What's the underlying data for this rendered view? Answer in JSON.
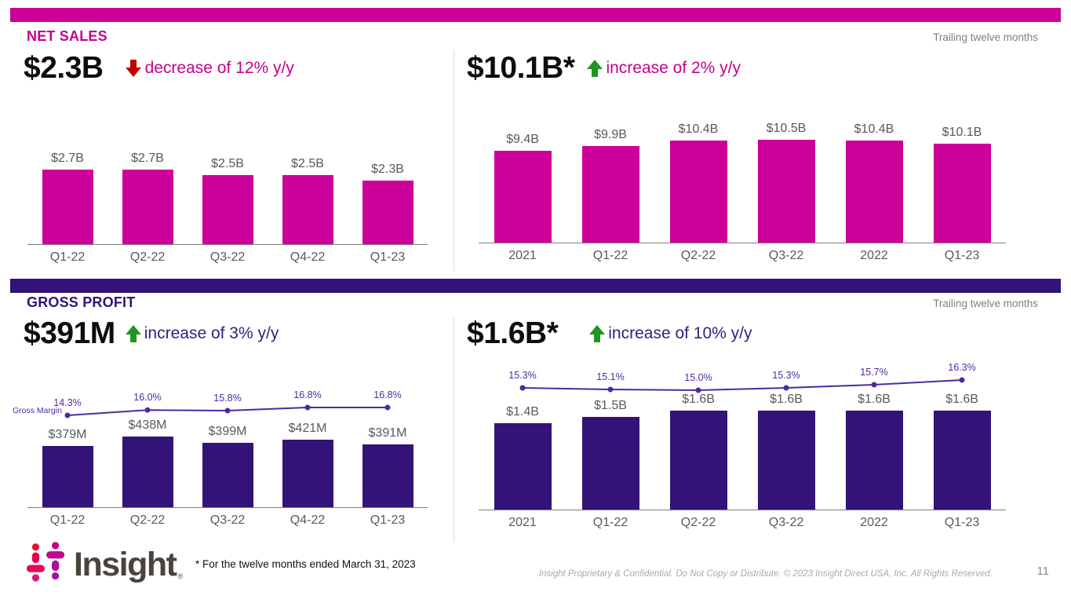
{
  "colors": {
    "magenta_accent": "#CC0099",
    "dark_purple_accent": "#331377",
    "margin_line_purple": "#4E2AA0",
    "decrease_arrow_red": "#C00000",
    "increase_arrow_green": "#219421",
    "axis_gray": "#7F7F7F",
    "label_gray": "#595959"
  },
  "net_sales": {
    "title": "NET SALES",
    "trailing": "Trailing twelve months",
    "left_headline": "$2.3B",
    "left_change": "decrease of 12% y/y",
    "right_headline": "$10.1B*",
    "right_change": "increase of 2% y/y"
  },
  "gross_profit": {
    "title": "GROSS PROFIT",
    "trailing": "Trailing twelve months",
    "left_headline": "$391M",
    "left_change": "increase of 3% y/y",
    "right_headline": "$1.6B*",
    "right_change": "increase of 10% y/y"
  },
  "footer": {
    "brand": "Insight",
    "reg_mark": "®",
    "footnote": "* For the twelve months ended March 31, 2023",
    "disclaimer": "Insight Proprietary & Confidential. Do Not Copy or Distribute. © 2023 Insight Direct USA, Inc. All Rights Reserved.",
    "page_number": "11"
  },
  "chart_data": [
    {
      "id": "net-sales-quarterly",
      "type": "bar",
      "categories": [
        "Q1-22",
        "Q2-22",
        "Q3-22",
        "Q4-22",
        "Q1-23"
      ],
      "values": [
        2.7,
        2.7,
        2.5,
        2.5,
        2.3
      ],
      "value_labels": [
        "$2.7B",
        "$2.7B",
        "$2.5B",
        "$2.5B",
        "$2.3B"
      ],
      "unit": "$B",
      "bar_color": "#CC0099"
    },
    {
      "id": "net-sales-ttm",
      "type": "bar",
      "categories": [
        "2021",
        "Q1-22",
        "Q2-22",
        "Q3-22",
        "2022",
        "Q1-23"
      ],
      "values": [
        9.4,
        9.9,
        10.4,
        10.5,
        10.4,
        10.1
      ],
      "value_labels": [
        "$9.4B",
        "$9.9B",
        "$10.4B",
        "$10.5B",
        "$10.4B",
        "$10.1B"
      ],
      "unit": "$B",
      "bar_color": "#CC0099"
    },
    {
      "id": "gross-profit-quarterly",
      "type": "bar+line",
      "categories": [
        "Q1-22",
        "Q2-22",
        "Q3-22",
        "Q4-22",
        "Q1-23"
      ],
      "values": [
        379,
        438,
        399,
        421,
        391
      ],
      "value_labels": [
        "$379M",
        "$438M",
        "$399M",
        "$421M",
        "$391M"
      ],
      "unit": "$M",
      "bar_color": "#331377",
      "line": {
        "name": "Gross Margin",
        "values": [
          14.3,
          16.0,
          15.8,
          16.8,
          16.8
        ],
        "value_labels": [
          "14.3%",
          "16.0%",
          "15.8%",
          "16.8%",
          "16.8%"
        ],
        "color": "#4E2AA0"
      }
    },
    {
      "id": "gross-profit-ttm",
      "type": "bar+line",
      "categories": [
        "2021",
        "Q1-22",
        "Q2-22",
        "Q3-22",
        "2022",
        "Q1-23"
      ],
      "values": [
        1.4,
        1.5,
        1.6,
        1.6,
        1.6,
        1.6
      ],
      "value_labels": [
        "$1.4B",
        "$1.5B",
        "$1.6B",
        "$1.6B",
        "$1.6B",
        "$1.6B"
      ],
      "unit": "$B",
      "bar_color": "#331377",
      "line": {
        "values": [
          15.3,
          15.1,
          15.0,
          15.3,
          15.7,
          16.3
        ],
        "value_labels": [
          "15.3%",
          "15.1%",
          "15.0%",
          "15.3%",
          "15.7%",
          "16.3%"
        ],
        "color": "#4E2AA0"
      }
    }
  ]
}
